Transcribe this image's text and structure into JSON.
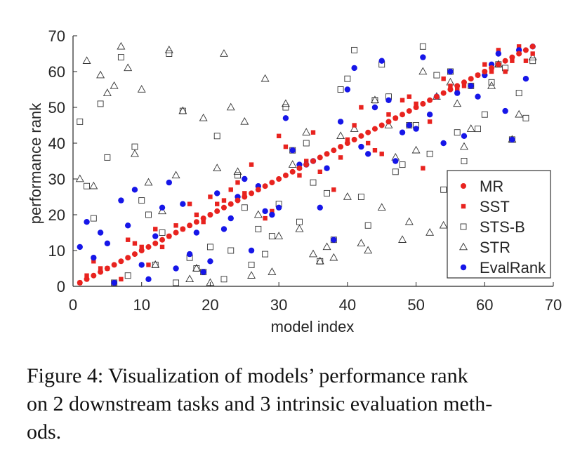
{
  "colors": {
    "red": "#e8231f",
    "blue": "#1616e8",
    "axis": "#262626",
    "hollow": "#333333"
  },
  "chart_data": {
    "type": "scatter",
    "xlabel": "model index",
    "ylabel": "performance rank",
    "xlim": [
      0,
      70
    ],
    "ylim": [
      0,
      70
    ],
    "xticks": [
      0,
      10,
      20,
      30,
      40,
      50,
      60,
      70
    ],
    "yticks": [
      0,
      10,
      20,
      30,
      40,
      50,
      60,
      70
    ],
    "grid": false,
    "legend_position": "bottom-right",
    "x": [
      1,
      2,
      3,
      4,
      5,
      6,
      7,
      8,
      9,
      10,
      11,
      12,
      13,
      14,
      15,
      16,
      17,
      18,
      19,
      20,
      21,
      22,
      23,
      24,
      25,
      26,
      27,
      28,
      29,
      30,
      31,
      32,
      33,
      34,
      35,
      36,
      37,
      38,
      39,
      40,
      41,
      42,
      43,
      44,
      45,
      46,
      47,
      48,
      49,
      50,
      51,
      52,
      53,
      54,
      55,
      56,
      57,
      58,
      59,
      60,
      61,
      62,
      63,
      64,
      65,
      66,
      67
    ],
    "series": [
      {
        "name": "MR",
        "marker": "dot-red",
        "values": [
          1,
          2,
          3,
          4,
          5,
          6,
          7,
          8,
          9,
          10,
          11,
          12,
          13,
          14,
          15,
          16,
          17,
          18,
          19,
          20,
          21,
          22,
          23,
          24,
          25,
          26,
          27,
          28,
          29,
          30,
          31,
          32,
          33,
          34,
          35,
          36,
          37,
          38,
          39,
          40,
          41,
          42,
          43,
          44,
          45,
          46,
          47,
          48,
          49,
          50,
          51,
          52,
          53,
          54,
          55,
          56,
          57,
          58,
          59,
          60,
          61,
          62,
          63,
          64,
          65,
          66,
          67
        ]
      },
      {
        "name": "SST",
        "marker": "square-red",
        "values": [
          1,
          3,
          7,
          5,
          5,
          1,
          2,
          13,
          12,
          11,
          6,
          16,
          11,
          14,
          17,
          16,
          23,
          20,
          18,
          25,
          23,
          24,
          27,
          29,
          26,
          34,
          28,
          19,
          21,
          42,
          39,
          38,
          31,
          35,
          43,
          32,
          33,
          27,
          36,
          41,
          45,
          50,
          40,
          38,
          37,
          48,
          47,
          52,
          53,
          51,
          33,
          46,
          53,
          58,
          56,
          55,
          56,
          56,
          59,
          62,
          60,
          66,
          60,
          63,
          67,
          63,
          65
        ]
      },
      {
        "name": "STS-B",
        "marker": "square-hollow",
        "values": [
          46,
          28,
          19,
          51,
          36,
          1,
          64,
          3,
          39,
          24,
          20,
          6,
          15,
          65,
          1,
          49,
          8,
          5,
          4,
          11,
          42,
          2,
          10,
          31,
          22,
          6,
          16,
          9,
          14,
          23,
          50,
          38,
          18,
          40,
          29,
          7,
          26,
          13,
          55,
          58,
          66,
          25,
          17,
          52,
          62,
          53,
          32,
          34,
          45,
          45,
          67,
          37,
          59,
          27,
          60,
          43,
          35,
          56,
          44,
          48,
          57,
          62,
          61,
          41,
          54,
          47,
          63
        ]
      },
      {
        "name": "STR",
        "marker": "triangle-hollow",
        "values": [
          30,
          63,
          28,
          59,
          54,
          56,
          67,
          61,
          37,
          55,
          29,
          6,
          21,
          66,
          31,
          49,
          2,
          5,
          47,
          1,
          33,
          65,
          50,
          32,
          46,
          3,
          20,
          58,
          4,
          14,
          51,
          34,
          16,
          43,
          9,
          7,
          11,
          8,
          42,
          25,
          44,
          12,
          10,
          52,
          22,
          45,
          36,
          13,
          18,
          38,
          60,
          15,
          53,
          17,
          57,
          51,
          39,
          44,
          22,
          30,
          56,
          62,
          22,
          41,
          48,
          30,
          64
        ]
      },
      {
        "name": "EvalRank",
        "marker": "dot-blue",
        "values": [
          11,
          18,
          8,
          15,
          12,
          1,
          24,
          17,
          27,
          6,
          2,
          14,
          22,
          29,
          5,
          23,
          9,
          15,
          4,
          7,
          26,
          16,
          19,
          25,
          30,
          10,
          28,
          21,
          20,
          22,
          47,
          38,
          34,
          34,
          35,
          22,
          33,
          13,
          46,
          55,
          61,
          39,
          37,
          50,
          63,
          52,
          35,
          43,
          45,
          44,
          64,
          48,
          53,
          40,
          60,
          54,
          42,
          56,
          53,
          59,
          62,
          65,
          49,
          41,
          66,
          58,
          67
        ]
      }
    ]
  },
  "caption": {
    "line1": "Figure 4:  Visualization of models’ performance rank",
    "line2": "on 2 downstream tasks and 3 intrinsic evaluation meth-",
    "line3": "ods."
  }
}
